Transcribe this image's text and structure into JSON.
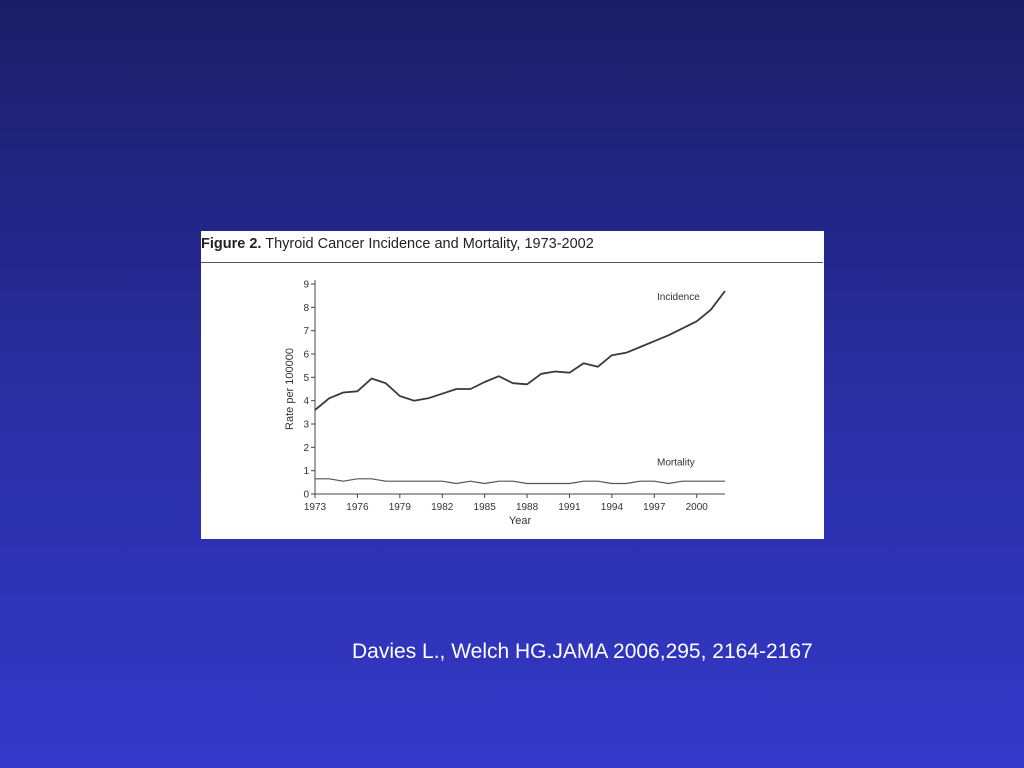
{
  "figure": {
    "label": "Figure 2.",
    "title": "Thyroid Cancer Incidence and Mortality, 1973-2002"
  },
  "citation": "Davies L., Welch HG.JAMA 2006,295, 2164-2167",
  "chart_data": {
    "type": "line",
    "title": "Thyroid Cancer Incidence and Mortality, 1973-2002",
    "xlabel": "Year",
    "ylabel": "Rate per 100000",
    "xlim": [
      1973,
      2002
    ],
    "ylim": [
      0,
      9
    ],
    "x_ticks": [
      "1973",
      "1976",
      "1979",
      "1982",
      "1985",
      "1988",
      "1991",
      "1994",
      "1997",
      "2000"
    ],
    "y_ticks": [
      "0",
      "1",
      "2",
      "3",
      "4",
      "5",
      "6",
      "7",
      "8",
      "9"
    ],
    "grid": false,
    "x": [
      1973,
      1974,
      1975,
      1976,
      1977,
      1978,
      1979,
      1980,
      1981,
      1982,
      1983,
      1984,
      1985,
      1986,
      1987,
      1988,
      1989,
      1990,
      1991,
      1992,
      1993,
      1994,
      1995,
      1996,
      1997,
      1998,
      1999,
      2000,
      2001,
      2002
    ],
    "series": [
      {
        "name": "Incidence",
        "values": [
          3.6,
          4.1,
          4.35,
          4.4,
          4.95,
          4.75,
          4.2,
          4.0,
          4.1,
          4.3,
          4.5,
          4.5,
          4.8,
          5.05,
          4.75,
          4.7,
          5.15,
          5.25,
          5.2,
          5.6,
          5.45,
          5.95,
          6.05,
          6.3,
          6.55,
          6.8,
          7.1,
          7.4,
          7.9,
          8.7
        ]
      },
      {
        "name": "Mortality",
        "values": [
          0.65,
          0.65,
          0.55,
          0.65,
          0.65,
          0.55,
          0.55,
          0.55,
          0.55,
          0.55,
          0.45,
          0.55,
          0.45,
          0.55,
          0.55,
          0.45,
          0.45,
          0.45,
          0.45,
          0.55,
          0.55,
          0.45,
          0.45,
          0.55,
          0.55,
          0.45,
          0.55,
          0.55,
          0.55,
          0.55
        ]
      }
    ]
  }
}
